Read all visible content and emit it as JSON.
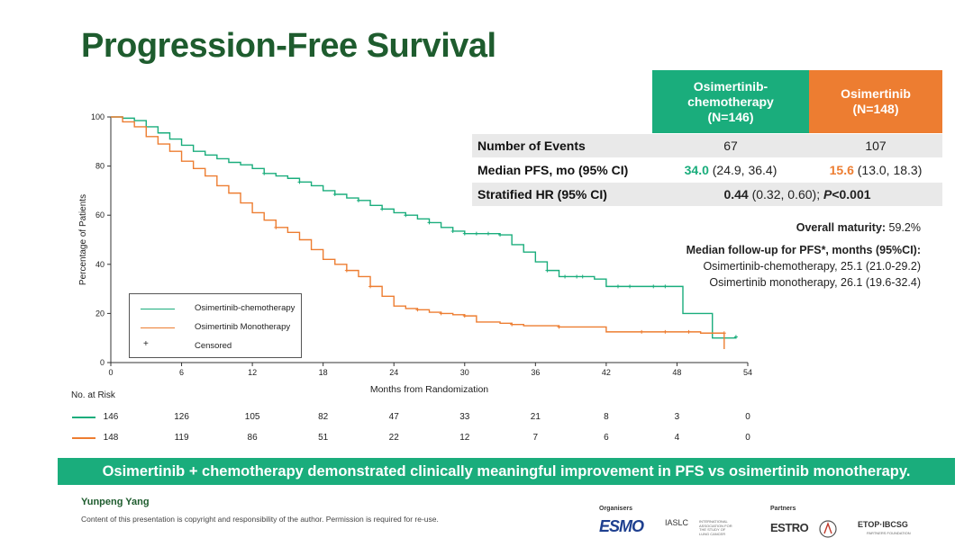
{
  "slide": {
    "title": "Progression-Free Survival",
    "banner": "Osimertinib + chemotherapy demonstrated clinically meaningful improvement in PFS vs osimertinib monotherapy.",
    "author": "Yunpeng Yang",
    "copyright": "Content of this presentation is copyright and responsibility of the author. Permission is required for re-use.",
    "organisers_label": "Organisers",
    "partners_label": "Partners",
    "logos": {
      "esmo": "ESMO",
      "iaslc": "IASLC",
      "iaslc_sub": "INTERNATIONAL ASSOCIATION FOR THE STUDY OF LUNG CANCER",
      "estro": "ESTRO",
      "etop": "ETOP·IBCSG",
      "etop_sub": "PARTNERS FOUNDATION"
    }
  },
  "table": {
    "col1": {
      "line1": "Osimertinib-",
      "line2": "chemotherapy",
      "line3": "(N=146)"
    },
    "col2": {
      "line1": "Osimertinib",
      "line2": "(N=148)"
    },
    "rows": {
      "events": {
        "label": "Number of Events",
        "v1": "67",
        "v2": "107"
      },
      "median": {
        "label": "Median PFS, mo (95% CI)",
        "v1_main": "34.0",
        "v1_ci": "(24.9, 36.4)",
        "v2_main": "15.6",
        "v2_ci": "(13.0, 18.3)"
      },
      "hr": {
        "label": "Stratified HR (95% CI)",
        "hr_main": "0.44",
        "hr_ci": "(0.32, 0.60);",
        "p_label": "P",
        "p_value": "<0.001"
      }
    }
  },
  "maturity": {
    "overall_label": "Overall maturity:",
    "overall_value": "59.2%",
    "followup_title": "Median follow-up for PFS*, months (95%CI):",
    "followup_combo": "Osimertinib-chemotherapy, 25.1 (21.0-29.2)",
    "followup_mono": "Osimertinib monotherapy, 26.1 (19.6-32.4)"
  },
  "legend": {
    "combo": "Osimertinib-chemotherapy",
    "mono": "Osimertinib Monotherapy",
    "censored": "Censored"
  },
  "risk": {
    "title": "No. at Risk",
    "combo": [
      "146",
      "126",
      "105",
      "82",
      "47",
      "33",
      "21",
      "8",
      "3",
      "0"
    ],
    "mono": [
      "148",
      "119",
      "86",
      "51",
      "22",
      "12",
      "7",
      "6",
      "4",
      "0"
    ]
  },
  "colors": {
    "combo": "#1aad7c",
    "mono": "#ed7d31",
    "title": "#1e5c2e"
  },
  "chart_data": {
    "type": "line",
    "title": "Progression-Free Survival",
    "xlabel": "Months from Randomization",
    "ylabel": "Percentage of Patients",
    "xlim": [
      0,
      54
    ],
    "ylim": [
      0,
      100
    ],
    "xticks": [
      0,
      6,
      12,
      18,
      24,
      30,
      36,
      42,
      48,
      54
    ],
    "yticks": [
      0,
      20,
      40,
      60,
      80,
      100
    ],
    "series": [
      {
        "name": "Osimertinib-chemotherapy",
        "color": "#1aad7c",
        "points": [
          [
            0,
            100
          ],
          [
            1,
            99.5
          ],
          [
            2,
            98.5
          ],
          [
            3,
            96
          ],
          [
            4,
            93.5
          ],
          [
            5,
            91
          ],
          [
            6,
            88.5
          ],
          [
            7,
            86
          ],
          [
            8,
            84.5
          ],
          [
            9,
            83
          ],
          [
            10,
            81.5
          ],
          [
            11,
            80.5
          ],
          [
            12,
            79
          ],
          [
            13,
            77
          ],
          [
            14,
            76
          ],
          [
            15,
            75
          ],
          [
            16,
            73.5
          ],
          [
            17,
            72
          ],
          [
            18,
            70
          ],
          [
            19,
            68.5
          ],
          [
            20,
            67
          ],
          [
            21,
            66
          ],
          [
            22,
            64
          ],
          [
            23,
            62.5
          ],
          [
            24,
            61
          ],
          [
            25,
            60
          ],
          [
            26,
            58.5
          ],
          [
            27,
            57
          ],
          [
            28,
            55
          ],
          [
            29,
            53.5
          ],
          [
            30,
            52.5
          ],
          [
            31,
            52.5
          ],
          [
            32,
            52.5
          ],
          [
            33,
            52
          ],
          [
            34,
            48
          ],
          [
            35,
            45
          ],
          [
            36,
            41
          ],
          [
            37,
            37.5
          ],
          [
            38,
            35
          ],
          [
            39,
            35
          ],
          [
            40,
            35
          ],
          [
            41,
            34
          ],
          [
            42,
            31
          ],
          [
            43,
            31
          ],
          [
            44,
            31
          ],
          [
            45,
            31
          ],
          [
            46,
            31
          ],
          [
            47,
            31
          ],
          [
            48,
            31
          ],
          [
            48.5,
            20
          ],
          [
            50,
            20
          ],
          [
            51,
            10
          ],
          [
            52,
            10
          ],
          [
            53,
            10.5
          ]
        ],
        "censored": [
          [
            13,
            77
          ],
          [
            16,
            73.5
          ],
          [
            19,
            68.5
          ],
          [
            21,
            66
          ],
          [
            23,
            62.5
          ],
          [
            25,
            60
          ],
          [
            27,
            57
          ],
          [
            29,
            53.5
          ],
          [
            30,
            52.5
          ],
          [
            31,
            52.5
          ],
          [
            32,
            52.5
          ],
          [
            33,
            52
          ],
          [
            37,
            37.5
          ],
          [
            38.5,
            35
          ],
          [
            39.5,
            35
          ],
          [
            40,
            35
          ],
          [
            43,
            31
          ],
          [
            44,
            31
          ],
          [
            46,
            31
          ],
          [
            47,
            31
          ],
          [
            53,
            10.5
          ]
        ]
      },
      {
        "name": "Osimertinib Monotherapy",
        "color": "#ed7d31",
        "points": [
          [
            0,
            100
          ],
          [
            1,
            98
          ],
          [
            2,
            96
          ],
          [
            3,
            92
          ],
          [
            4,
            89
          ],
          [
            5,
            86
          ],
          [
            6,
            82
          ],
          [
            7,
            79
          ],
          [
            8,
            76
          ],
          [
            9,
            72
          ],
          [
            10,
            69
          ],
          [
            11,
            65
          ],
          [
            12,
            61
          ],
          [
            13,
            58
          ],
          [
            14,
            55
          ],
          [
            15,
            53
          ],
          [
            16,
            50
          ],
          [
            17,
            46
          ],
          [
            18,
            42
          ],
          [
            19,
            40
          ],
          [
            20,
            37.5
          ],
          [
            21,
            35
          ],
          [
            22,
            31
          ],
          [
            23,
            27
          ],
          [
            24,
            23
          ],
          [
            25,
            22
          ],
          [
            26,
            21.5
          ],
          [
            27,
            20.5
          ],
          [
            28,
            20
          ],
          [
            29,
            19.5
          ],
          [
            30,
            19
          ],
          [
            31,
            16.5
          ],
          [
            32,
            16.5
          ],
          [
            33,
            16
          ],
          [
            34,
            15.5
          ],
          [
            35,
            15
          ],
          [
            36,
            15
          ],
          [
            37,
            15
          ],
          [
            38,
            14.5
          ],
          [
            39,
            14.5
          ],
          [
            40,
            14.5
          ],
          [
            41,
            14.5
          ],
          [
            42,
            12.5
          ],
          [
            45,
            12.5
          ],
          [
            48,
            12.5
          ],
          [
            50,
            12
          ],
          [
            52,
            12
          ],
          [
            52,
            5.5
          ]
        ],
        "censored": [
          [
            14,
            55
          ],
          [
            20,
            37.5
          ],
          [
            22,
            31
          ],
          [
            26,
            21.5
          ],
          [
            28,
            20
          ],
          [
            30,
            19
          ],
          [
            34,
            15.5
          ],
          [
            38,
            14.5
          ],
          [
            45,
            12.5
          ],
          [
            47,
            12.5
          ],
          [
            49,
            12.5
          ],
          [
            52,
            12
          ]
        ]
      }
    ]
  }
}
